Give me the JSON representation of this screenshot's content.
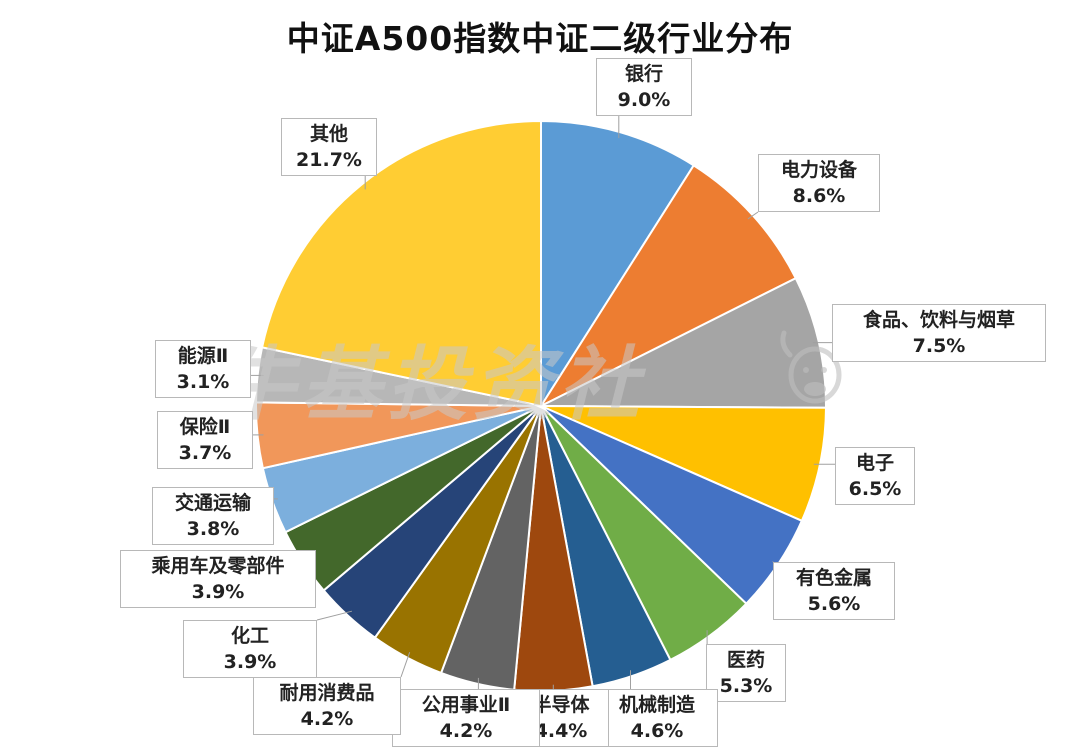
{
  "chart_data": {
    "type": "pie",
    "title": "中证A500指数中证二级行业分布",
    "start_angle_deg": 0,
    "direction": "clockwise",
    "slices": [
      {
        "label": "银行",
        "value": 9.0,
        "display": "9.0%",
        "color": "#5B9BD5"
      },
      {
        "label": "电力设备",
        "value": 8.6,
        "display": "8.6%",
        "color": "#ED7D31"
      },
      {
        "label": "食品、饮料与烟草",
        "value": 7.5,
        "display": "7.5%",
        "color": "#A5A5A5"
      },
      {
        "label": "电子",
        "value": 6.5,
        "display": "6.5%",
        "color": "#FFC000"
      },
      {
        "label": "有色金属",
        "value": 5.6,
        "display": "5.6%",
        "color": "#4472C4"
      },
      {
        "label": "医药",
        "value": 5.3,
        "display": "5.3%",
        "color": "#70AD47"
      },
      {
        "label": "机械制造",
        "value": 4.6,
        "display": "4.6%",
        "color": "#255E91"
      },
      {
        "label": "半导体",
        "value": 4.4,
        "display": "4.4%",
        "color": "#9E480E"
      },
      {
        "label": "公用事业Ⅱ",
        "value": 4.2,
        "display": "4.2%",
        "color": "#636363"
      },
      {
        "label": "耐用消费品",
        "value": 4.2,
        "display": "4.2%",
        "color": "#997300"
      },
      {
        "label": "化工",
        "value": 3.9,
        "display": "3.9%",
        "color": "#264478"
      },
      {
        "label": "乘用车及零部件",
        "value": 3.9,
        "display": "3.9%",
        "color": "#43682B"
      },
      {
        "label": "交通运输",
        "value": 3.8,
        "display": "3.8%",
        "color": "#7CAFDD"
      },
      {
        "label": "保险Ⅱ",
        "value": 3.7,
        "display": "3.7%",
        "color": "#F1975A"
      },
      {
        "label": "能源Ⅱ",
        "value": 3.1,
        "display": "3.1%",
        "color": "#B7B7B7"
      },
      {
        "label": "其他",
        "value": 21.7,
        "display": "21.7%",
        "color": "#FFCD33"
      }
    ]
  },
  "watermark": {
    "text": "牛基投资社"
  },
  "logo": {
    "icon": "bull-head-icon"
  }
}
